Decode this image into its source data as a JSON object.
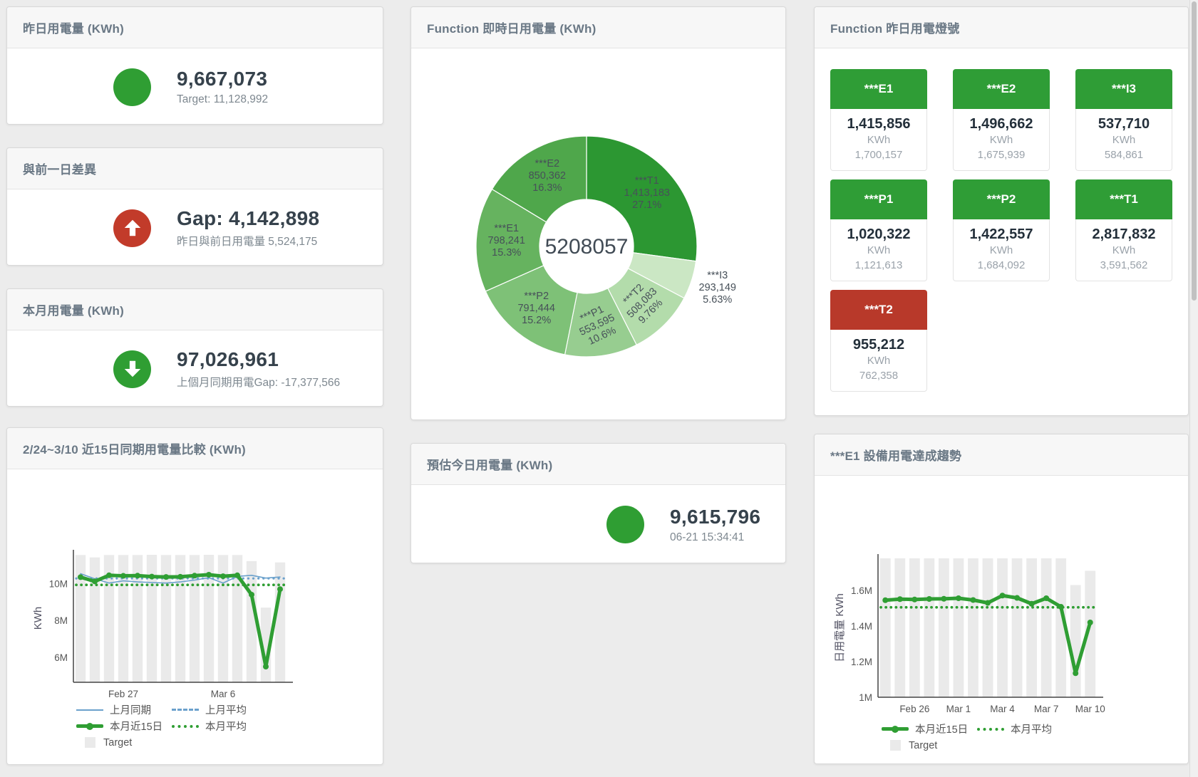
{
  "colors": {
    "green": "#2f9e33",
    "red": "#c23b2a",
    "blue": "#6ba1cc",
    "tile_green": "#2f9d36",
    "tile_red": "#b8392a",
    "bar_gray": "#eaeaea"
  },
  "panels": {
    "yesterday": {
      "title": "昨日用電量 (KWh)",
      "value": "9,667,073",
      "sub": "Target: 11,128,992",
      "status_color": "green"
    },
    "gap_prev_day": {
      "title": "與前一日差異",
      "value": "Gap: 4,142,898",
      "sub": "昨日與前日用電量 5,524,175",
      "status_color": "red",
      "direction": "up"
    },
    "month_total": {
      "title": "本月用電量 (KWh)",
      "value": "97,026,961",
      "sub": "上個月同期用電Gap: -17,377,566",
      "status_color": "green",
      "direction": "down"
    },
    "realtime_donut": {
      "title": "Function 即時日用電量 (KWh)"
    },
    "lights": {
      "title": "Function 昨日用電燈號",
      "tiles": [
        {
          "label": "***E1",
          "value": "1,415,856",
          "unit": "KWh",
          "target": "1,700,157",
          "status": "green"
        },
        {
          "label": "***E2",
          "value": "1,496,662",
          "unit": "KWh",
          "target": "1,675,939",
          "status": "green"
        },
        {
          "label": "***I3",
          "value": "537,710",
          "unit": "KWh",
          "target": "584,861",
          "status": "green"
        },
        {
          "label": "***P1",
          "value": "1,020,322",
          "unit": "KWh",
          "target": "1,121,613",
          "status": "green"
        },
        {
          "label": "***P2",
          "value": "1,422,557",
          "unit": "KWh",
          "target": "1,684,092",
          "status": "green"
        },
        {
          "label": "***T1",
          "value": "2,817,832",
          "unit": "KWh",
          "target": "3,591,562",
          "status": "green"
        },
        {
          "label": "***T2",
          "value": "955,212",
          "unit": "KWh",
          "target": "762,358",
          "status": "red"
        }
      ]
    },
    "compare15": {
      "title": "2/24~3/10 近15日同期用電量比較 (KWh)"
    },
    "today_estimate": {
      "title": "預估今日用電量 (KWh)",
      "value": "9,615,796",
      "sub": "06-21 15:34:41",
      "status_color": "green"
    },
    "e1_trend": {
      "title": "***E1 設備用電達成趨勢"
    }
  },
  "chart_data": [
    {
      "id": "function_realtime_daily",
      "type": "pie",
      "title": "Function 即時日用電量 (KWh)",
      "center_total": "5208057",
      "total": 5208057,
      "slices": [
        {
          "name": "***T1",
          "value": 1413183,
          "display": "1,413,183",
          "pct": "27.1%",
          "color": "#2c9732",
          "label_rotation": 0,
          "label_outside": false
        },
        {
          "name": "***I3",
          "value": 293149,
          "display": "293,149",
          "pct": "5.63%",
          "color": "#cbe7c4",
          "label_rotation": 0,
          "label_outside": true
        },
        {
          "name": "***T2",
          "value": 508083,
          "display": "508,083",
          "pct": "9.76%",
          "color": "#b3dcab",
          "label_rotation": -45,
          "label_outside": false
        },
        {
          "name": "***P1",
          "value": 553595,
          "display": "553,595",
          "pct": "10.6%",
          "color": "#97cd90",
          "label_rotation": -25,
          "label_outside": false
        },
        {
          "name": "***P2",
          "value": 791444,
          "display": "791,444",
          "pct": "15.2%",
          "color": "#7ec177",
          "label_rotation": 0,
          "label_outside": false
        },
        {
          "name": "***E1",
          "value": 798241,
          "display": "798,241",
          "pct": "15.3%",
          "color": "#66b35f",
          "label_rotation": 0,
          "label_outside": false
        },
        {
          "name": "***E2",
          "value": 850362,
          "display": "850,362",
          "pct": "16.3%",
          "color": "#4fa74b",
          "label_rotation": 0,
          "label_outside": false
        }
      ]
    },
    {
      "id": "compare_15day",
      "type": "bar+line",
      "title": "2/24~3/10 近15日同期用電量比較 (KWh)",
      "ylabel": "KWh",
      "unit": "M KWh",
      "ylim": [
        4.65,
        11.6
      ],
      "yticks": [
        {
          "v": 6,
          "label": "6M"
        },
        {
          "v": 8,
          "label": "8M"
        },
        {
          "v": 10,
          "label": "10M"
        }
      ],
      "x": [
        "2/24",
        "2/25",
        "2/26",
        "2/27",
        "2/28",
        "3/1",
        "3/2",
        "3/3",
        "3/4",
        "3/5",
        "3/6",
        "3/7",
        "3/8",
        "3/9",
        "3/10"
      ],
      "xticks": [
        {
          "i": 3,
          "label": "Feb 27"
        },
        {
          "i": 10,
          "label": "Mar 6"
        }
      ],
      "grid": false,
      "legend_position": "bottom",
      "series": [
        {
          "name": "Target",
          "type": "bar",
          "color": "#eaeaea",
          "values": [
            11.55,
            11.42,
            11.55,
            11.55,
            11.55,
            11.56,
            11.55,
            11.55,
            11.55,
            11.56,
            11.55,
            11.55,
            11.22,
            8.7,
            11.15
          ]
        },
        {
          "name": "上月平均",
          "type": "avg",
          "color": "#6ba1cc",
          "width": 3.2,
          "value": 10.28
        },
        {
          "name": "本月平均",
          "type": "avg",
          "color": "#2f9e33",
          "width": 3.8,
          "value": 9.93
        },
        {
          "name": "上月同期",
          "type": "line",
          "color": "#6ba1cc",
          "width": 1.6,
          "markers": false,
          "values": [
            10.54,
            10.26,
            10.03,
            10.15,
            10.09,
            10.06,
            10.03,
            10.09,
            10.19,
            10.32,
            10.03,
            10.39,
            10.45,
            10.3,
            10.36
          ]
        },
        {
          "name": "本月近15日",
          "type": "line",
          "color": "#2f9e33",
          "width": 5,
          "markers": true,
          "values": [
            10.35,
            10.12,
            10.45,
            10.42,
            10.43,
            10.38,
            10.36,
            10.37,
            10.43,
            10.48,
            10.4,
            10.45,
            9.4,
            5.5,
            9.7
          ]
        }
      ]
    },
    {
      "id": "e1_equipment_trend",
      "type": "bar+line",
      "title": "***E1 設備用電達成趨勢",
      "ylabel": "日用電量 KWh",
      "unit": "M KWh",
      "ylim": [
        1.0,
        1.78
      ],
      "yticks": [
        {
          "v": 1,
          "label": "1M"
        },
        {
          "v": 1.2,
          "label": "1.2M"
        },
        {
          "v": 1.4,
          "label": "1.4M"
        },
        {
          "v": 1.6,
          "label": "1.6M"
        }
      ],
      "x": [
        "2/24",
        "2/25",
        "2/26",
        "2/27",
        "2/28",
        "3/1",
        "3/2",
        "3/3",
        "3/4",
        "3/5",
        "3/6",
        "3/7",
        "3/8",
        "3/9",
        "3/10"
      ],
      "xticks": [
        {
          "i": 2,
          "label": "Feb 26"
        },
        {
          "i": 5,
          "label": "Mar 1"
        },
        {
          "i": 8,
          "label": "Mar 4"
        },
        {
          "i": 11,
          "label": "Mar 7"
        },
        {
          "i": 14,
          "label": "Mar 10"
        }
      ],
      "grid": false,
      "legend_position": "bottom",
      "series": [
        {
          "name": "Target",
          "type": "bar",
          "color": "#eaeaea",
          "values": [
            1.78,
            1.78,
            1.78,
            1.78,
            1.78,
            1.78,
            1.78,
            1.78,
            1.78,
            1.78,
            1.78,
            1.78,
            1.78,
            1.63,
            1.71
          ]
        },
        {
          "name": "本月平均",
          "type": "avg",
          "color": "#2f9e33",
          "width": 3.8,
          "value": 1.505
        },
        {
          "name": "本月近15日",
          "type": "line",
          "color": "#2f9e33",
          "width": 5,
          "markers": true,
          "values": [
            1.545,
            1.551,
            1.549,
            1.552,
            1.553,
            1.556,
            1.546,
            1.53,
            1.571,
            1.558,
            1.525,
            1.556,
            1.508,
            1.135,
            1.42
          ]
        }
      ]
    }
  ]
}
